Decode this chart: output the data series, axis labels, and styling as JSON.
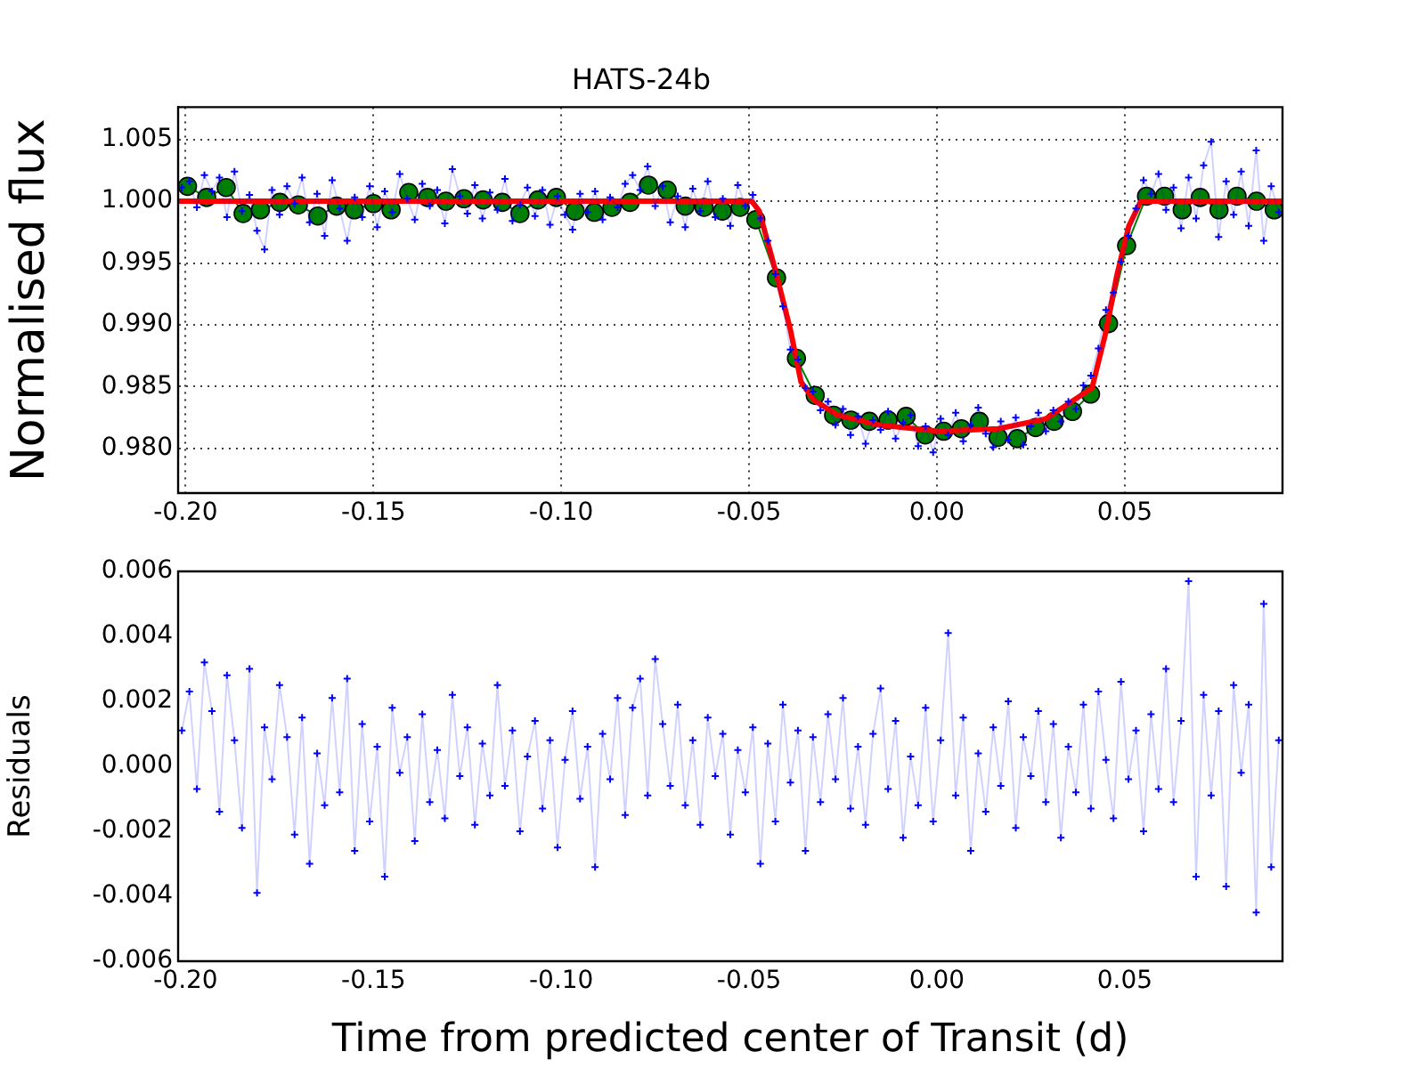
{
  "chart_data": [
    {
      "type": "line",
      "title": "HATS-24b",
      "ylabel": "Normalised flux",
      "grid": true,
      "legend": false,
      "xlim": [
        -0.202,
        0.092
      ],
      "ylim": [
        0.9764,
        1.0076
      ],
      "xticks": [
        {
          "value": -0.2,
          "label": "-0.20"
        },
        {
          "value": -0.15,
          "label": "-0.15"
        },
        {
          "value": -0.1,
          "label": "-0.10"
        },
        {
          "value": -0.05,
          "label": "-0.05"
        },
        {
          "value": 0,
          "label": "0.00"
        },
        {
          "value": 0.05,
          "label": "0.05"
        }
      ],
      "yticks": [
        {
          "value": 0.98,
          "label": "0.980"
        },
        {
          "value": 0.985,
          "label": "0.985"
        },
        {
          "value": 0.99,
          "label": "0.990"
        },
        {
          "value": 0.995,
          "label": "0.995"
        },
        {
          "value": 1.0,
          "label": "1.000"
        },
        {
          "value": 1.005,
          "label": "1.005"
        }
      ],
      "x": [
        -0.201,
        -0.199,
        -0.197,
        -0.195,
        -0.193,
        -0.191,
        -0.189,
        -0.187,
        -0.185,
        -0.183,
        -0.181,
        -0.179,
        -0.177,
        -0.175,
        -0.173,
        -0.171,
        -0.169,
        -0.167,
        -0.165,
        -0.163,
        -0.161,
        -0.159,
        -0.157,
        -0.155,
        -0.153,
        -0.151,
        -0.149,
        -0.147,
        -0.145,
        -0.143,
        -0.141,
        -0.139,
        -0.137,
        -0.135,
        -0.133,
        -0.131,
        -0.129,
        -0.127,
        -0.125,
        -0.123,
        -0.121,
        -0.119,
        -0.117,
        -0.115,
        -0.113,
        -0.111,
        -0.109,
        -0.107,
        -0.105,
        -0.103,
        -0.101,
        -0.099,
        -0.097,
        -0.095,
        -0.093,
        -0.091,
        -0.089,
        -0.087,
        -0.085,
        -0.083,
        -0.081,
        -0.079,
        -0.077,
        -0.075,
        -0.073,
        -0.071,
        -0.069,
        -0.067,
        -0.065,
        -0.063,
        -0.061,
        -0.059,
        -0.057,
        -0.055,
        -0.053,
        -0.051,
        -0.049,
        -0.047,
        -0.045,
        -0.043,
        -0.041,
        -0.039,
        -0.037,
        -0.035,
        -0.033,
        -0.031,
        -0.029,
        -0.027,
        -0.025,
        -0.023,
        -0.021,
        -0.019,
        -0.017,
        -0.015,
        -0.013,
        -0.011,
        -0.009,
        -0.007,
        -0.005,
        -0.003,
        -0.001,
        0.001,
        0.003,
        0.005,
        0.007,
        0.009,
        0.011,
        0.013,
        0.015,
        0.017,
        0.019,
        0.021,
        0.023,
        0.025,
        0.027,
        0.029,
        0.031,
        0.033,
        0.035,
        0.037,
        0.039,
        0.041,
        0.043,
        0.045,
        0.047,
        0.049,
        0.051,
        0.053,
        0.055,
        0.057,
        0.059,
        0.061,
        0.063,
        0.065,
        0.067,
        0.069,
        0.071,
        0.073,
        0.075,
        0.077,
        0.079,
        0.081,
        0.083,
        0.085,
        0.087,
        0.089,
        0.091
      ],
      "series": [
        {
          "color": "#0000ff",
          "marker": "cross",
          "values": [
            1.0011,
            1.0016,
            0.9995,
            1.0021,
            1.0008,
            1.0019,
            0.9987,
            1.0024,
            0.9992,
            1.0005,
            0.9976,
            0.9961,
            1.0009,
            0.9989,
            1.0012,
            0.9998,
            1.0019,
            0.9983,
            1.0006,
            0.9972,
            1.0017,
            0.9994,
            0.9968,
            1.0003,
            0.9987,
            1.0012,
            0.9979,
            1.0008,
            0.9991,
            1.0022,
            1.0002,
            0.9985,
            1.0014,
            0.9996,
            1.0009,
            0.9982,
            1.0026,
            1.0004,
            0.999,
            1.0013,
            0.9986,
            1.0007,
            0.9993,
            1.0018,
            0.9984,
            0.9997,
            1.0011,
            0.9988,
            1.0009,
            0.9981,
            1.0004,
            0.9989,
            0.9977,
            1.0006,
            0.9991,
            1.0008,
            0.9985,
            1.0003,
            0.9995,
            1.0014,
            1.0021,
            1.0009,
            1.0028,
            0.9996,
            1.0012,
            0.9983,
            1.0004,
            0.9979,
            1.001,
            0.9992,
            1.0016,
            0.9987,
            1.0002,
            0.998,
            1.0013,
            0.9996,
            1.0005,
            0.9986,
            0.9968,
            0.9941,
            0.9915,
            0.988,
            0.9872,
            0.9849,
            0.9846,
            0.9831,
            0.9838,
            0.9819,
            0.9832,
            0.9811,
            0.9826,
            0.9804,
            0.9823,
            0.9815,
            0.983,
            0.9808,
            0.9821,
            0.9827,
            0.9802,
            0.9818,
            0.9797,
            0.9824,
            0.9811,
            0.9829,
            0.9806,
            0.9819,
            0.9833,
            0.9812,
            0.9801,
            0.9822,
            0.9807,
            0.9825,
            0.9803,
            0.9818,
            0.9829,
            0.9814,
            0.9831,
            0.9822,
            0.9838,
            0.9832,
            0.9851,
            0.9859,
            0.9881,
            0.9912,
            0.9926,
            0.9951,
            0.9972,
            0.9994,
            1.0017,
            1.0006,
            1.0022,
            0.9993,
            1.0011,
            0.9978,
            1.0019,
            0.9986,
            1.0029,
            1.0048,
            0.9971,
            1.0016,
            0.9989,
            1.0024,
            0.998,
            1.0041,
            0.9968,
            1.0012,
            0.9991
          ]
        },
        {
          "color": "#008000",
          "marker": "circle",
          "x": [
            -0.1995,
            -0.1944,
            -0.1892,
            -0.1847,
            -0.1801,
            -0.1749,
            -0.17,
            -0.1648,
            -0.1598,
            -0.1551,
            -0.15,
            -0.1453,
            -0.1406,
            -0.1356,
            -0.1307,
            -0.1259,
            -0.1208,
            -0.1157,
            -0.111,
            -0.1062,
            -0.1013,
            -0.0963,
            -0.0912,
            -0.0865,
            -0.0817,
            -0.0768,
            -0.0718,
            -0.067,
            -0.062,
            -0.0571,
            -0.0524,
            -0.0482,
            -0.0427,
            -0.0374,
            -0.0324,
            -0.0275,
            -0.0229,
            -0.018,
            -0.013,
            -0.0082,
            -0.0031,
            0.0018,
            0.0065,
            0.0113,
            0.0163,
            0.0214,
            0.0263,
            0.0312,
            0.0361,
            0.0409,
            0.0457,
            0.0505,
            0.0558,
            0.0606,
            0.0653,
            0.0701,
            0.0751,
            0.0799,
            0.0851,
            0.0898
          ],
          "values": [
            1.0012,
            1.0003,
            1.0011,
            0.999,
            0.9993,
            0.9999,
            0.9997,
            0.9988,
            0.9996,
            0.9993,
            0.9998,
            0.9993,
            1.0007,
            1.0003,
            1.0,
            1.0002,
            1.0001,
            0.9999,
            0.999,
            1.0001,
            1.0003,
            0.9992,
            0.9991,
            0.9995,
            0.9999,
            1.0013,
            1.0009,
            0.9996,
            0.9995,
            0.9992,
            0.9995,
            0.9985,
            0.9938,
            0.9873,
            0.9843,
            0.9827,
            0.9823,
            0.9822,
            0.9823,
            0.9826,
            0.9811,
            0.9814,
            0.9816,
            0.9822,
            0.9809,
            0.9808,
            0.9817,
            0.9822,
            0.983,
            0.9844,
            0.9901,
            0.9964,
            1.0004,
            1.0004,
            0.9993,
            1.0003,
            0.9993,
            1.0004,
            1.0,
            0.9993
          ]
        },
        {
          "color": "#ff0000",
          "marker": "none",
          "x": [
            -0.202,
            -0.0493,
            -0.0473,
            -0.043,
            -0.039,
            -0.0362,
            -0.0327,
            -0.0264,
            -0.0153,
            0.0005,
            0.0163,
            0.029,
            0.0413,
            0.0448,
            0.0479,
            0.0511,
            0.0543,
            0.092
          ],
          "values": [
            1.0,
            1.0,
            0.9992,
            0.9944,
            0.9896,
            0.9854,
            0.9839,
            0.9827,
            0.9819,
            0.9814,
            0.9816,
            0.9824,
            0.9849,
            0.9892,
            0.994,
            0.998,
            1.0,
            1.0
          ]
        }
      ]
    },
    {
      "type": "line",
      "xlabel": "Time from predicted center of Transit (d)",
      "ylabel": "Residuals",
      "grid": false,
      "legend": false,
      "xlim": [
        -0.202,
        0.092
      ],
      "ylim": [
        -0.006,
        0.006
      ],
      "xticks": [
        {
          "value": -0.2,
          "label": "-0.20"
        },
        {
          "value": -0.15,
          "label": "-0.15"
        },
        {
          "value": -0.1,
          "label": "-0.10"
        },
        {
          "value": -0.05,
          "label": "-0.05"
        },
        {
          "value": 0,
          "label": "0.00"
        },
        {
          "value": 0.05,
          "label": "0.05"
        }
      ],
      "yticks": [
        {
          "value": -0.006,
          "label": "-0.006"
        },
        {
          "value": -0.004,
          "label": "-0.004"
        },
        {
          "value": -0.002,
          "label": "-0.002"
        },
        {
          "value": 0,
          "label": "0.000"
        },
        {
          "value": 0.002,
          "label": "0.002"
        },
        {
          "value": 0.004,
          "label": "0.004"
        },
        {
          "value": 0.006,
          "label": "0.006"
        }
      ],
      "x": [
        -0.201,
        -0.199,
        -0.197,
        -0.195,
        -0.193,
        -0.191,
        -0.189,
        -0.187,
        -0.185,
        -0.183,
        -0.181,
        -0.179,
        -0.177,
        -0.175,
        -0.173,
        -0.171,
        -0.169,
        -0.167,
        -0.165,
        -0.163,
        -0.161,
        -0.159,
        -0.157,
        -0.155,
        -0.153,
        -0.151,
        -0.149,
        -0.147,
        -0.145,
        -0.143,
        -0.141,
        -0.139,
        -0.137,
        -0.135,
        -0.133,
        -0.131,
        -0.129,
        -0.127,
        -0.125,
        -0.123,
        -0.121,
        -0.119,
        -0.117,
        -0.115,
        -0.113,
        -0.111,
        -0.109,
        -0.107,
        -0.105,
        -0.103,
        -0.101,
        -0.099,
        -0.097,
        -0.095,
        -0.093,
        -0.091,
        -0.089,
        -0.087,
        -0.085,
        -0.083,
        -0.081,
        -0.079,
        -0.077,
        -0.075,
        -0.073,
        -0.071,
        -0.069,
        -0.067,
        -0.065,
        -0.063,
        -0.061,
        -0.059,
        -0.057,
        -0.055,
        -0.053,
        -0.051,
        -0.049,
        -0.047,
        -0.045,
        -0.043,
        -0.041,
        -0.039,
        -0.037,
        -0.035,
        -0.033,
        -0.031,
        -0.029,
        -0.027,
        -0.025,
        -0.023,
        -0.021,
        -0.019,
        -0.017,
        -0.015,
        -0.013,
        -0.011,
        -0.009,
        -0.007,
        -0.005,
        -0.003,
        -0.001,
        0.001,
        0.003,
        0.005,
        0.007,
        0.009,
        0.011,
        0.013,
        0.015,
        0.017,
        0.019,
        0.021,
        0.023,
        0.025,
        0.027,
        0.029,
        0.031,
        0.033,
        0.035,
        0.037,
        0.039,
        0.041,
        0.043,
        0.045,
        0.047,
        0.049,
        0.051,
        0.053,
        0.055,
        0.057,
        0.059,
        0.061,
        0.063,
        0.065,
        0.067,
        0.069,
        0.071,
        0.073,
        0.075,
        0.077,
        0.079,
        0.081,
        0.083,
        0.085,
        0.087,
        0.089,
        0.091
      ],
      "series": [
        {
          "color": "#0000ff",
          "marker": "cross",
          "values": [
            0.0011,
            0.0023,
            -0.0007,
            0.0032,
            0.0017,
            -0.0014,
            0.0028,
            0.0008,
            -0.0019,
            0.003,
            -0.0039,
            0.0012,
            -0.0004,
            0.0025,
            0.0009,
            -0.0021,
            0.0015,
            -0.003,
            0.0004,
            -0.0012,
            0.0021,
            -0.0008,
            0.0027,
            -0.0026,
            0.0013,
            -0.0017,
            0.0006,
            -0.0034,
            0.0018,
            -0.0002,
            0.0009,
            -0.0023,
            0.0016,
            -0.0011,
            0.0005,
            -0.0016,
            0.0022,
            -0.0003,
            0.0012,
            -0.0018,
            0.0007,
            -0.0009,
            0.0025,
            -0.0006,
            0.0011,
            -0.002,
            0.0003,
            0.0014,
            -0.0013,
            0.0008,
            -0.0025,
            0.0002,
            0.0017,
            -0.001,
            0.0006,
            -0.0031,
            0.001,
            -0.0004,
            0.0021,
            -0.0015,
            0.0018,
            0.0027,
            -0.0009,
            0.0033,
            0.0013,
            -0.0006,
            0.0019,
            -0.0012,
            0.0008,
            -0.0018,
            0.0015,
            -0.0003,
            0.001,
            -0.0021,
            0.0005,
            -0.0008,
            0.0012,
            -0.003,
            0.0007,
            -0.0017,
            0.0019,
            -0.0005,
            0.0011,
            -0.0026,
            0.0009,
            -0.0011,
            0.0016,
            -0.0004,
            0.0021,
            -0.0013,
            0.0006,
            -0.0018,
            0.001,
            0.0024,
            -0.0007,
            0.0014,
            -0.0022,
            0.0003,
            -0.0012,
            0.0018,
            -0.0017,
            0.0008,
            0.0041,
            -0.0009,
            0.0015,
            -0.0026,
            0.0004,
            -0.0014,
            0.0012,
            -0.0006,
            0.002,
            -0.0019,
            0.0009,
            -0.0003,
            0.0017,
            -0.0011,
            0.0013,
            -0.0022,
            0.0006,
            -0.0008,
            0.0019,
            -0.0013,
            0.0023,
            0.0002,
            -0.0016,
            0.0026,
            -0.0004,
            0.0011,
            -0.002,
            0.0016,
            -0.0007,
            0.003,
            -0.0011,
            0.0014,
            0.0057,
            -0.0034,
            0.0022,
            -0.0009,
            0.0017,
            -0.0037,
            0.0025,
            -0.0002,
            0.0019,
            -0.0045,
            0.005,
            -0.0031,
            0.0008
          ]
        }
      ]
    }
  ]
}
